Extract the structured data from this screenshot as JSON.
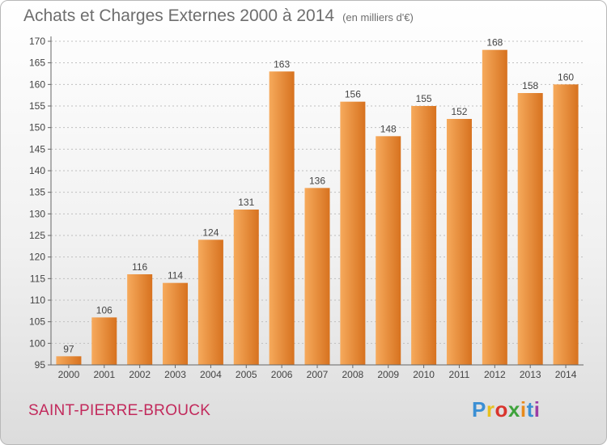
{
  "title": "Achats et Charges Externes 2000 à 2014",
  "unit": "(en milliers d'€)",
  "commune": "SAINT-PIERRE-BROUCK",
  "logo": {
    "letters": [
      "P",
      "r",
      "o",
      "x",
      "i",
      "t",
      "i"
    ]
  },
  "colors": {
    "bar_light": "#f6aa5c",
    "bar_dark": "#d7721f",
    "grid": "#bfbfbf",
    "title": "#6e6e6e",
    "commune": "#c22a5c"
  },
  "chart_data": {
    "type": "bar",
    "categories": [
      "2000",
      "2001",
      "2002",
      "2003",
      "2004",
      "2005",
      "2006",
      "2007",
      "2008",
      "2009",
      "2010",
      "2011",
      "2012",
      "2013",
      "2014"
    ],
    "values": [
      97,
      106,
      116,
      114,
      124,
      131,
      163,
      136,
      156,
      148,
      155,
      152,
      168,
      158,
      160
    ],
    "ylim": [
      95,
      170
    ],
    "yticks": [
      95,
      100,
      105,
      110,
      115,
      120,
      125,
      130,
      135,
      140,
      145,
      150,
      155,
      160,
      165,
      170
    ],
    "grid": true,
    "title": "Achats et Charges Externes 2000 à 2014",
    "xlabel": "",
    "ylabel": ""
  }
}
